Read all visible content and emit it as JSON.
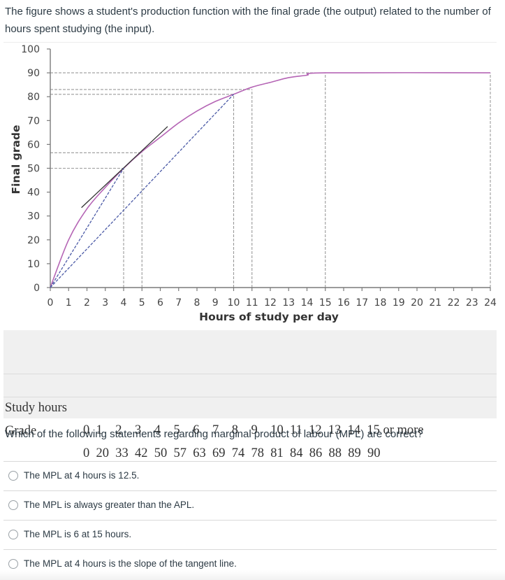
{
  "intro": "The figure shows a student's production function with the final grade (the output) related to the number of hours spent studying (the input).",
  "chart_data": {
    "type": "line",
    "title": "",
    "xlabel": "Hours of study per day",
    "ylabel": "Final grade",
    "xlim": [
      0,
      24
    ],
    "ylim": [
      0,
      100
    ],
    "x_ticks": [
      "0",
      "1",
      "2",
      "3",
      "4",
      "5",
      "6",
      "7",
      "8",
      "9",
      "10",
      "11",
      "12",
      "13",
      "14",
      "15",
      "16",
      "17",
      "18",
      "19",
      "20",
      "21",
      "22",
      "23",
      "24"
    ],
    "y_ticks": [
      "0",
      "10",
      "20",
      "30",
      "40",
      "50",
      "60",
      "70",
      "80",
      "90",
      "100"
    ],
    "grid": false,
    "series": [
      {
        "name": "Production function",
        "color": "#b565b5",
        "x": [
          0,
          1,
          2,
          3,
          4,
          5,
          6,
          7,
          8,
          9,
          10,
          11,
          12,
          13,
          14,
          15,
          24
        ],
        "values": [
          0,
          20,
          33,
          42,
          50,
          57,
          63,
          69,
          74,
          78,
          81,
          84,
          86,
          88,
          89,
          90,
          90
        ]
      },
      {
        "name": "Tangent line",
        "color": "#333333",
        "x": [
          1.7,
          6.4
        ],
        "values": [
          33.5,
          67.5
        ]
      },
      {
        "name": "Ray from origin to (4, 50)",
        "color": "#4b5aa6",
        "style": "dashed",
        "x": [
          0,
          4
        ],
        "values": [
          0,
          50
        ]
      },
      {
        "name": "Ray from origin to (10, 81)",
        "color": "#4b5aa6",
        "style": "dashed",
        "x": [
          0,
          10
        ],
        "values": [
          0,
          81
        ]
      }
    ],
    "reference_lines": {
      "horizontal": [
        50,
        56.5,
        81,
        83,
        90
      ],
      "vertical": [
        4,
        5,
        10,
        11,
        15,
        24
      ],
      "color": "#9a9a9a",
      "style": "dashed"
    }
  },
  "table": {
    "row1": {
      "label": "Study hours",
      "values": "0  1    2    3    4    5    6    7    8    9    10  11  12  13  14  15 or more"
    },
    "row2": {
      "label": "Grade",
      "values": "0  20  33  42  50  57  63  69  74  78  81  84  86  88  89  90"
    }
  },
  "question": "Which of the following statements regarding marginal product of labour (MPL) are correct?",
  "options": [
    {
      "label": "The MPL at 4 hours is 12.5."
    },
    {
      "label": "The MPL is always greater than the APL."
    },
    {
      "label": "The MPL is 6 at 15 hours."
    },
    {
      "label": "The MPL at 4 hours is the slope of the tangent line."
    }
  ]
}
